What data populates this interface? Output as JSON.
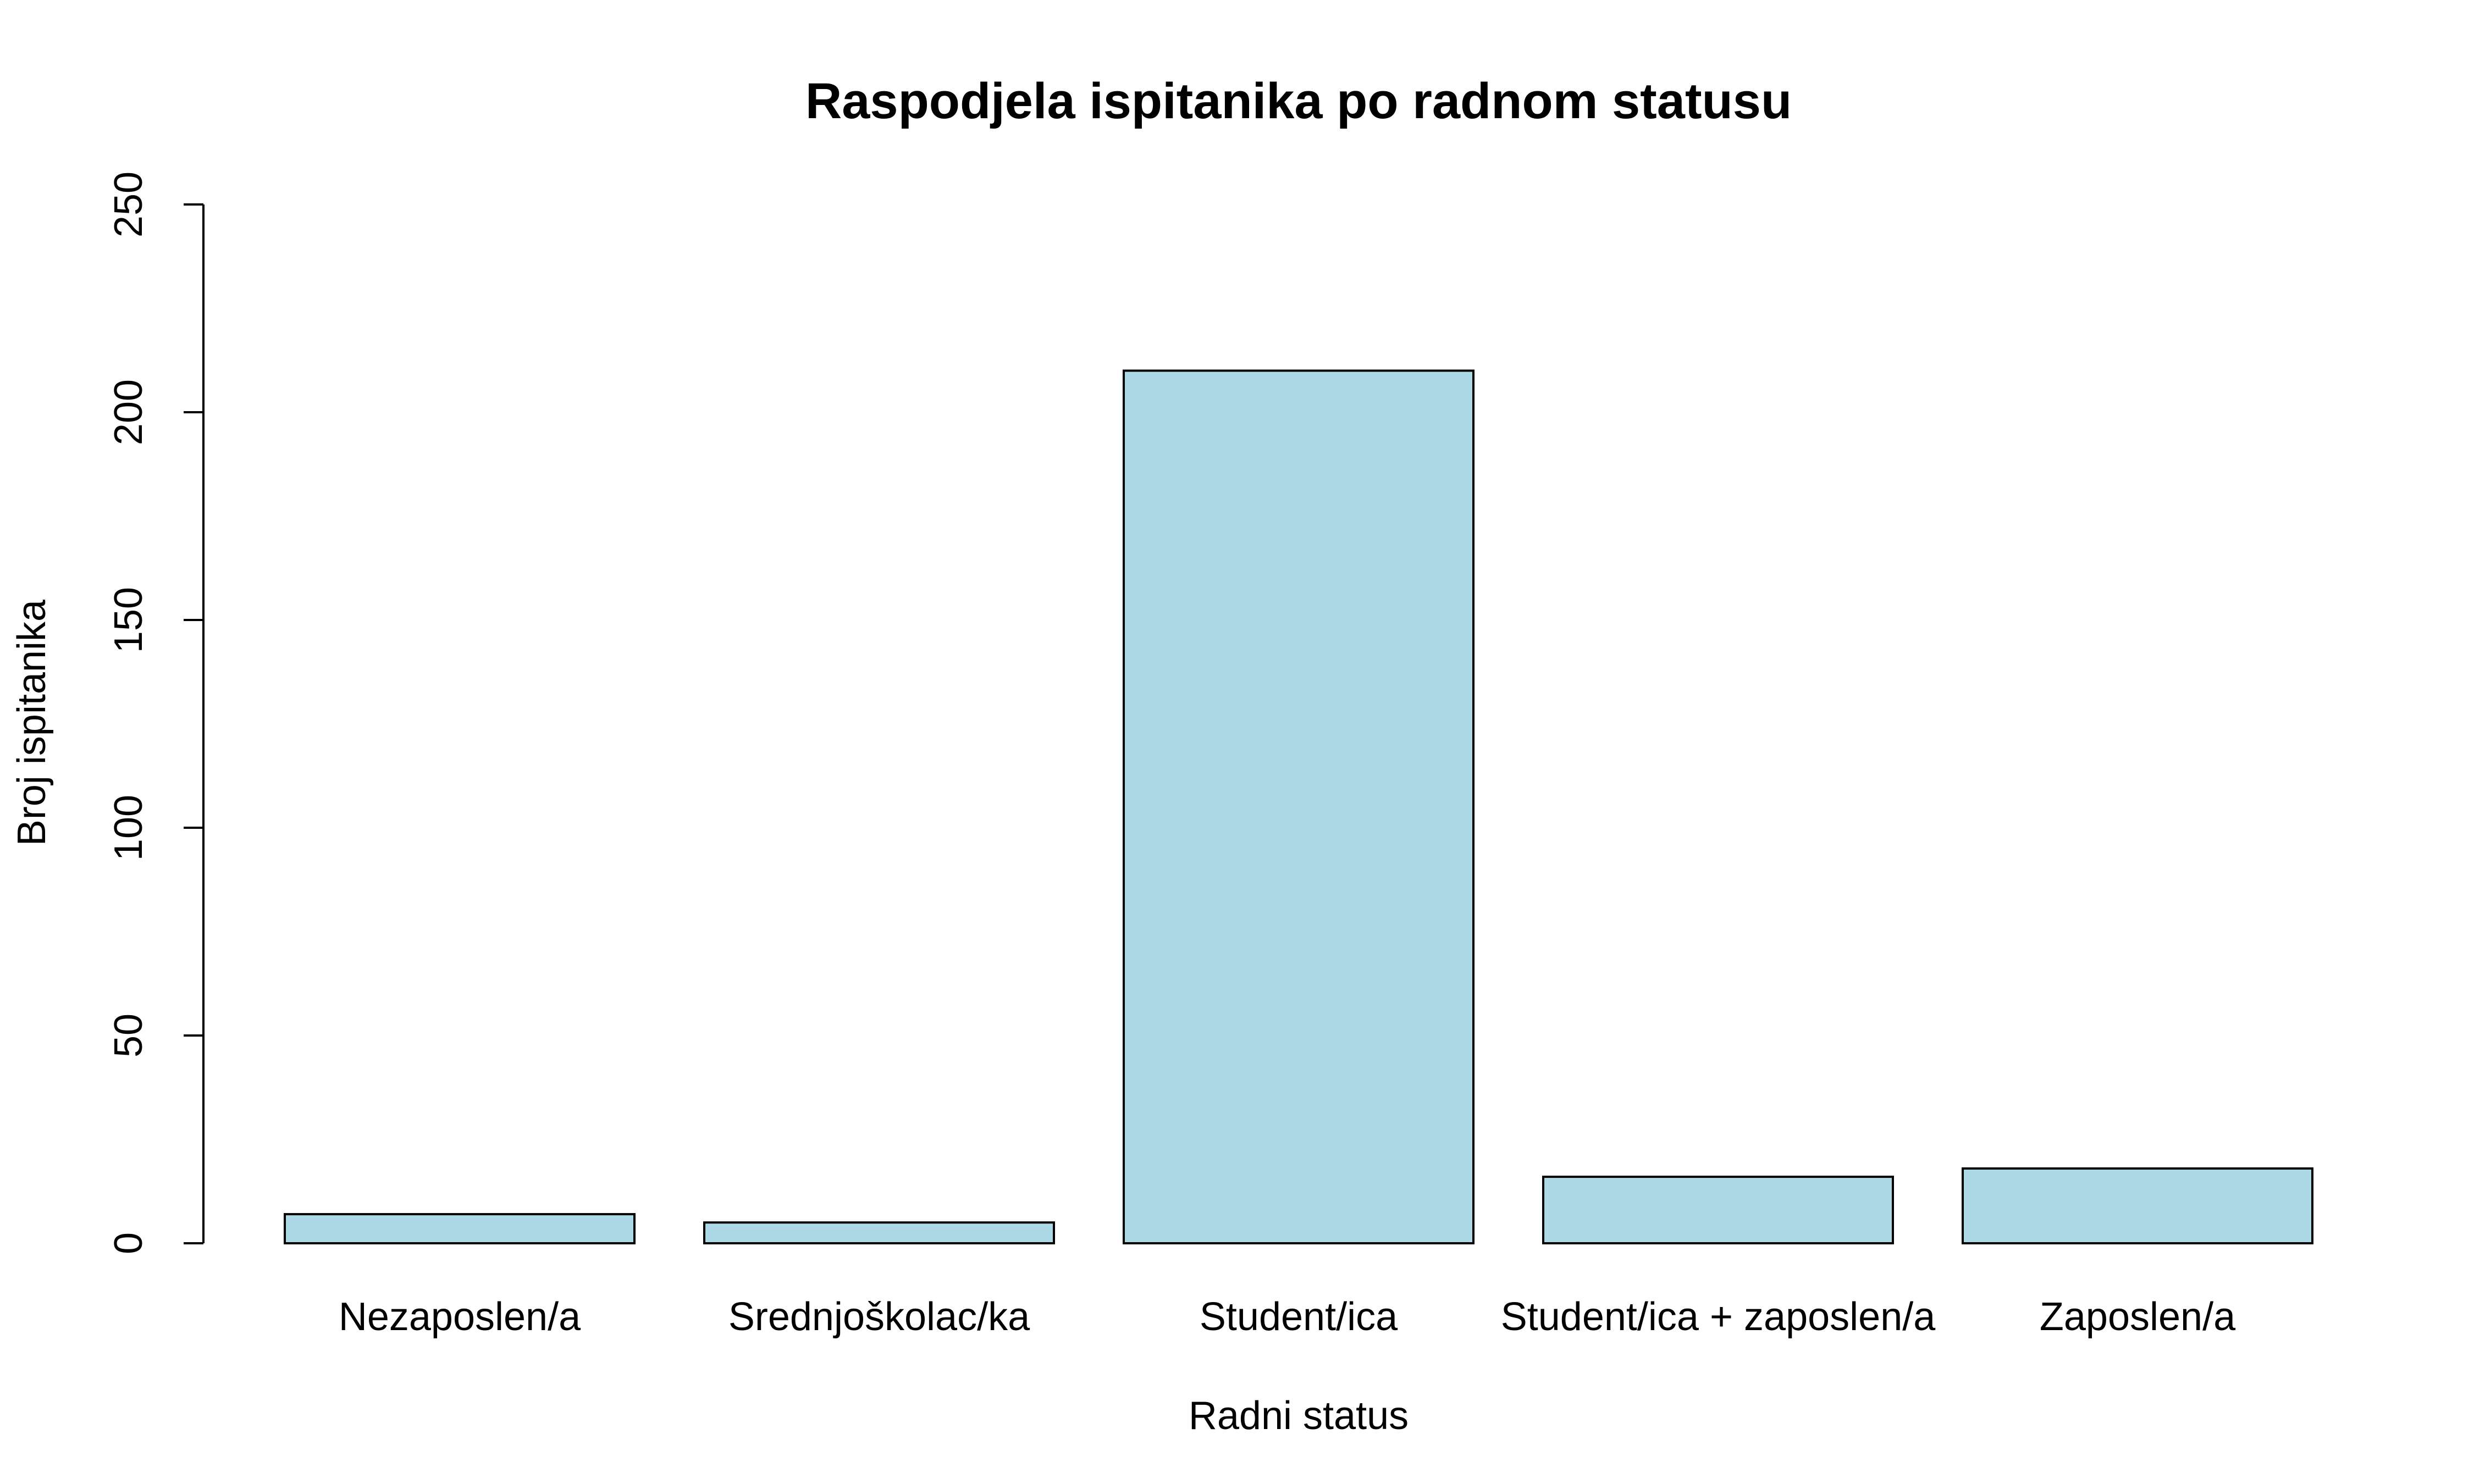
{
  "chart_data": {
    "type": "bar",
    "title": "Raspodjela ispitanika po radnom statusu",
    "xlabel": "Radni status",
    "ylabel": "Broj ispitanika",
    "categories": [
      "Nezaposlen/a",
      "Srednjoškolac/ka",
      "Student/ica",
      "Student/ica + zaposlen/a",
      "Zaposlen/a"
    ],
    "values": [
      7,
      5,
      210,
      16,
      18
    ],
    "ylim": [
      0,
      250
    ],
    "yticks": [
      "0",
      "50",
      "100",
      "150",
      "200",
      "250"
    ],
    "grid": false,
    "legend": "none",
    "colors": {
      "bar_fill": "#ADD8E6",
      "bar_stroke": "#000000"
    }
  }
}
